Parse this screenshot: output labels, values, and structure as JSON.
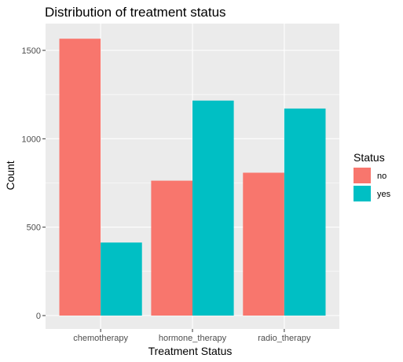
{
  "chart_data": {
    "type": "bar",
    "title": "Distribution of treatment status",
    "xlabel": "Treatment Status",
    "ylabel": "Count",
    "categories": [
      "chemotherapy",
      "hormone_therapy",
      "radio_therapy"
    ],
    "series": [
      {
        "name": "no",
        "values": [
          1566,
          763,
          808
        ],
        "color": "#F8766D"
      },
      {
        "name": "yes",
        "values": [
          413,
          1216,
          1171
        ],
        "color": "#00BFC4"
      }
    ],
    "ylim": [
      0,
      1650
    ],
    "yticks": [
      0,
      500,
      1000,
      1500
    ],
    "grid": true,
    "legend": {
      "title": "Status",
      "placement": "right"
    },
    "panel_background": "#EBEBEB"
  }
}
